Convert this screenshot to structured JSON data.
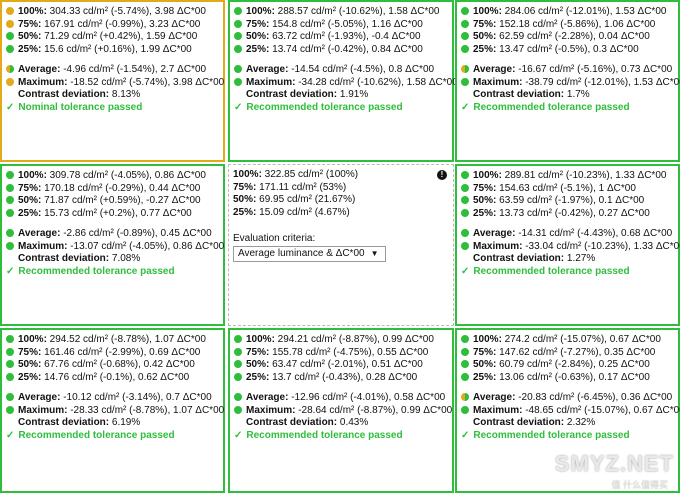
{
  "colors": {
    "pass_green": "#2fbe3c",
    "warn_yellow": "#e2a91a",
    "center_dash": "#b9b9b9"
  },
  "labels": {
    "average": "Average:",
    "maximum": "Maximum:",
    "contrast": "Contrast deviation:",
    "recommended": "Recommended tolerance passed",
    "nominal": "Nominal tolerance passed",
    "check": "✓"
  },
  "cells": [
    {
      "rows": [
        {
          "dot": "yellow",
          "key": "100%:",
          "val": " 304.33 cd/m² (-5.74%), 3.98 ΔC*00"
        },
        {
          "dot": "yellow",
          "key": "75%:",
          "val": " 167.91 cd/m² (-0.99%), 3.23 ΔC*00"
        },
        {
          "dot": "green",
          "key": "50%:",
          "val": " 71.29 cd/m² (+0.42%), 1.59 ΔC*00"
        },
        {
          "dot": "green",
          "key": "25%:",
          "val": " 15.6 cd/m² (+0.16%), 1.99 ΔC*00"
        }
      ],
      "average": {
        "dot": "half",
        "val": " -4.96 cd/m² (-1.54%), 2.7 ΔC*00"
      },
      "maximum": {
        "dot": "yellow",
        "val": " -18.52 cd/m² (-5.74%), 3.98 ΔC*00"
      },
      "contrast": " 8.13%",
      "result": "Nominal tolerance passed"
    },
    {
      "rows": [
        {
          "dot": "green",
          "key": "100%:",
          "val": " 288.57 cd/m² (-10.62%), 1.58 ΔC*00"
        },
        {
          "dot": "green",
          "key": "75%:",
          "val": " 154.8 cd/m² (-5.05%), 1.16 ΔC*00"
        },
        {
          "dot": "green",
          "key": "50%:",
          "val": " 63.72 cd/m² (-1.93%), -0.4 ΔC*00"
        },
        {
          "dot": "green",
          "key": "25%:",
          "val": " 13.74 cd/m² (-0.42%), 0.84 ΔC*00"
        }
      ],
      "average": {
        "dot": "green",
        "val": " -14.54 cd/m² (-4.5%), 0.8 ΔC*00"
      },
      "maximum": {
        "dot": "green",
        "val": " -34.28 cd/m² (-10.62%), 1.58 ΔC*00"
      },
      "contrast": " 1.91%",
      "result": "Recommended tolerance passed"
    },
    {
      "rows": [
        {
          "dot": "green",
          "key": "100%:",
          "val": " 284.06 cd/m² (-12.01%), 1.53 ΔC*00"
        },
        {
          "dot": "green",
          "key": "75%:",
          "val": " 152.18 cd/m² (-5.86%), 1.06 ΔC*00"
        },
        {
          "dot": "green",
          "key": "50%:",
          "val": " 62.59 cd/m² (-2.28%), 0.04 ΔC*00"
        },
        {
          "dot": "green",
          "key": "25%:",
          "val": " 13.47 cd/m² (-0.5%), 0.3 ΔC*00"
        }
      ],
      "average": {
        "dot": "half",
        "val": " -16.67 cd/m² (-5.16%), 0.73 ΔC*00"
      },
      "maximum": {
        "dot": "green",
        "val": " -38.79 cd/m² (-12.01%), 1.53 ΔC*00"
      },
      "contrast": " 1.7%",
      "result": "Recommended tolerance passed"
    },
    {
      "rows": [
        {
          "dot": "green",
          "key": "100%:",
          "val": " 309.78 cd/m² (-4.05%), 0.86 ΔC*00"
        },
        {
          "dot": "green",
          "key": "75%:",
          "val": " 170.18 cd/m² (-0.29%), 0.44 ΔC*00"
        },
        {
          "dot": "green",
          "key": "50%:",
          "val": " 71.87 cd/m² (+0.59%), -0.27 ΔC*00"
        },
        {
          "dot": "green",
          "key": "25%:",
          "val": " 15.73 cd/m² (+0.2%), 0.77 ΔC*00"
        }
      ],
      "average": {
        "dot": "green",
        "val": " -2.86 cd/m² (-0.89%), 0.45 ΔC*00"
      },
      "maximum": {
        "dot": "green",
        "val": " -13.07 cd/m² (-4.05%), 0.86 ΔC*00"
      },
      "contrast": " 7.08%",
      "result": "Recommended tolerance passed"
    },
    {
      "center": true,
      "rows": [
        {
          "key": "100%:",
          "val": " 322.85 cd/m² (100%)"
        },
        {
          "key": "75%:",
          "val": " 171.11 cd/m² (53%)"
        },
        {
          "key": "50%:",
          "val": " 69.95 cd/m² (21.67%)"
        },
        {
          "key": "25%:",
          "val": " 15.09 cd/m² (4.67%)"
        }
      ],
      "eval_label": "Evaluation criteria:",
      "eval_value": "Average luminance & ΔC*00",
      "info_icon": "!"
    },
    {
      "rows": [
        {
          "dot": "green",
          "key": "100%:",
          "val": " 289.81 cd/m² (-10.23%), 1.33 ΔC*00"
        },
        {
          "dot": "green",
          "key": "75%:",
          "val": " 154.63 cd/m² (-5.1%), 1 ΔC*00"
        },
        {
          "dot": "green",
          "key": "50%:",
          "val": " 63.59 cd/m² (-1.97%), 0.1 ΔC*00"
        },
        {
          "dot": "green",
          "key": "25%:",
          "val": " 13.73 cd/m² (-0.42%), 0.27 ΔC*00"
        }
      ],
      "average": {
        "dot": "green",
        "val": " -14.31 cd/m² (-4.43%), 0.68 ΔC*00"
      },
      "maximum": {
        "dot": "green",
        "val": " -33.04 cd/m² (-10.23%), 1.33 ΔC*00"
      },
      "contrast": " 1.27%",
      "result": "Recommended tolerance passed"
    },
    {
      "rows": [
        {
          "dot": "green",
          "key": "100%:",
          "val": " 294.52 cd/m² (-8.78%), 1.07 ΔC*00"
        },
        {
          "dot": "green",
          "key": "75%:",
          "val": " 161.46 cd/m² (-2.99%), 0.69 ΔC*00"
        },
        {
          "dot": "green",
          "key": "50%:",
          "val": " 67.76 cd/m² (-0.68%), 0.42 ΔC*00"
        },
        {
          "dot": "green",
          "key": "25%:",
          "val": " 14.76 cd/m² (-0.1%), 0.62 ΔC*00"
        }
      ],
      "average": {
        "dot": "green",
        "val": " -10.12 cd/m² (-3.14%), 0.7 ΔC*00"
      },
      "maximum": {
        "dot": "green",
        "val": " -28.33 cd/m² (-8.78%), 1.07 ΔC*00"
      },
      "contrast": " 6.19%",
      "result": "Recommended tolerance passed"
    },
    {
      "rows": [
        {
          "dot": "green",
          "key": "100%:",
          "val": " 294.21 cd/m² (-8.87%), 0.99 ΔC*00"
        },
        {
          "dot": "green",
          "key": "75%:",
          "val": " 155.78 cd/m² (-4.75%), 0.55 ΔC*00"
        },
        {
          "dot": "green",
          "key": "50%:",
          "val": " 63.47 cd/m² (-2.01%), 0.51 ΔC*00"
        },
        {
          "dot": "green",
          "key": "25%:",
          "val": " 13.7 cd/m² (-0.43%), 0.28 ΔC*00"
        }
      ],
      "average": {
        "dot": "green",
        "val": " -12.96 cd/m² (-4.01%), 0.58 ΔC*00"
      },
      "maximum": {
        "dot": "green",
        "val": " -28.64 cd/m² (-8.87%), 0.99 ΔC*00"
      },
      "contrast": " 0.43%",
      "result": "Recommended tolerance passed"
    },
    {
      "rows": [
        {
          "dot": "green",
          "key": "100%:",
          "val": " 274.2 cd/m² (-15.07%), 0.67 ΔC*00"
        },
        {
          "dot": "green",
          "key": "75%:",
          "val": " 147.62 cd/m² (-7.27%), 0.35 ΔC*00"
        },
        {
          "dot": "green",
          "key": "50%:",
          "val": " 60.79 cd/m² (-2.84%), 0.25 ΔC*00"
        },
        {
          "dot": "green",
          "key": "25%:",
          "val": " 13.06 cd/m² (-0.63%), 0.17 ΔC*00"
        }
      ],
      "average": {
        "dot": "half",
        "val": " -20.83 cd/m² (-6.45%), 0.36 ΔC*00"
      },
      "maximum": {
        "dot": "green",
        "val": " -48.65 cd/m² (-15.07%), 0.67 ΔC*00"
      },
      "contrast": " 2.32%",
      "result": "Recommended tolerance passed"
    }
  ],
  "watermark": {
    "brand": "SMYZ.NET",
    "sub": "值 什么值得买"
  }
}
